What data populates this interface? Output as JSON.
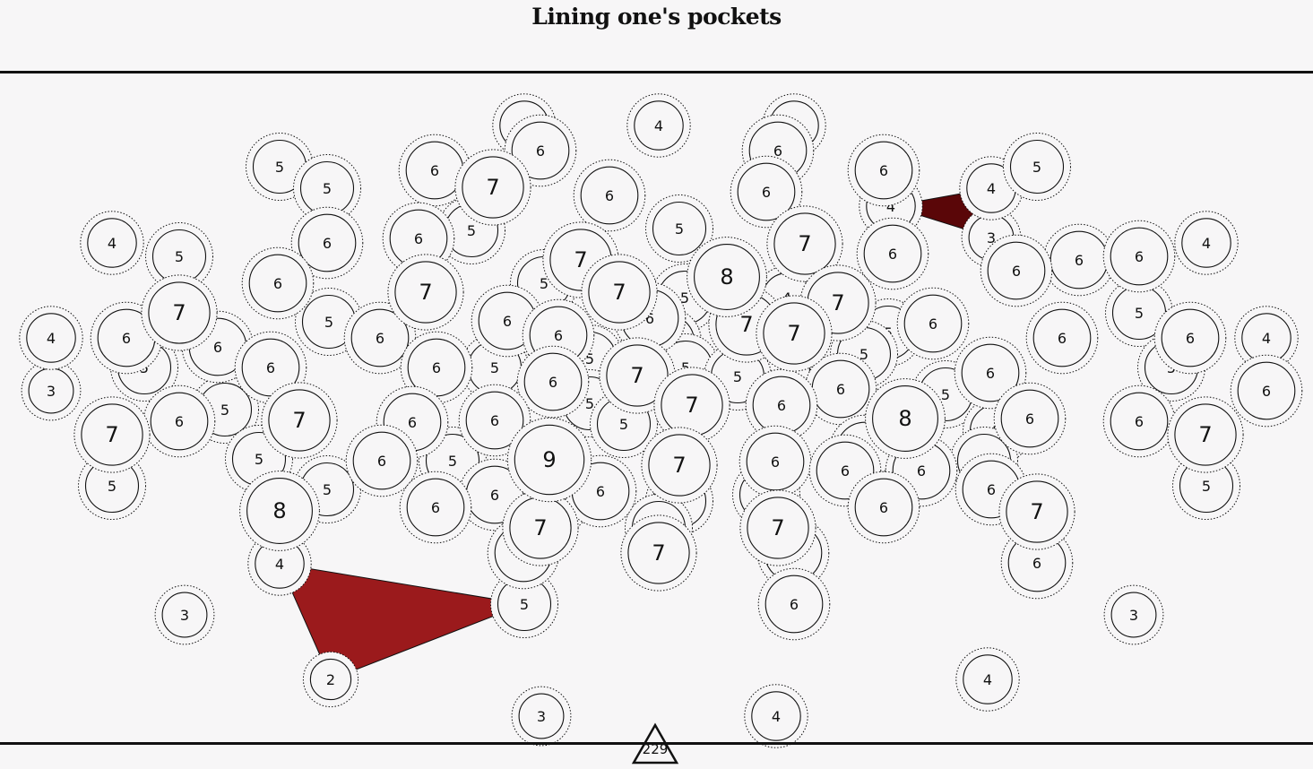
{
  "title": "Lining one's pockets",
  "score": "229",
  "colors": {
    "background": "#f7f6f7",
    "ink": "#111111",
    "circle_fill": "#f7f6f7",
    "pocket_dark": "#5a0608",
    "pocket_red": "#9b1a1c"
  },
  "nodes": [
    {
      "id": 1,
      "value": 4
    },
    {
      "id": 2,
      "value": 4
    },
    {
      "id": 3,
      "value": 4
    },
    {
      "id": 4,
      "value": 6
    },
    {
      "id": 5,
      "value": 6
    },
    {
      "id": 6,
      "value": 5
    },
    {
      "id": 7,
      "value": 5
    },
    {
      "id": 8,
      "value": 6
    },
    {
      "id": 9,
      "value": 7
    },
    {
      "id": 10,
      "value": 6
    },
    {
      "id": 11,
      "value": 6
    },
    {
      "id": 12,
      "value": 6
    },
    {
      "id": 13,
      "value": 4
    },
    {
      "id": 14,
      "value": 5
    },
    {
      "id": 15,
      "value": 4
    },
    {
      "id": 16,
      "value": 5
    },
    {
      "id": 17,
      "value": 4
    },
    {
      "id": 18,
      "value": 5
    },
    {
      "id": 19,
      "value": 6
    },
    {
      "id": 20,
      "value": 6
    },
    {
      "id": 21,
      "value": 5
    },
    {
      "id": 22,
      "value": 7
    },
    {
      "id": 23,
      "value": 3
    },
    {
      "id": 24,
      "value": 6
    },
    {
      "id": 25,
      "value": 6
    },
    {
      "id": 26,
      "value": 6
    },
    {
      "id": 27,
      "value": 4
    },
    {
      "id": 28,
      "value": 6
    },
    {
      "id": 29,
      "value": 7
    },
    {
      "id": 30,
      "value": 7
    },
    {
      "id": 31,
      "value": 5
    },
    {
      "id": 32,
      "value": 8
    },
    {
      "id": 33,
      "value": 7
    },
    {
      "id": 34,
      "value": 5
    },
    {
      "id": 35,
      "value": 4
    },
    {
      "id": 36,
      "value": 7
    },
    {
      "id": 37,
      "value": 7
    },
    {
      "id": 38,
      "value": 6
    },
    {
      "id": 39,
      "value": 5
    },
    {
      "id": 40,
      "value": 6
    },
    {
      "id": 41,
      "value": 6
    },
    {
      "id": 42,
      "value": 6
    },
    {
      "id": 43,
      "value": 5
    },
    {
      "id": 44,
      "value": 5
    },
    {
      "id": 45,
      "value": 6
    },
    {
      "id": 46,
      "value": 4
    },
    {
      "id": 47,
      "value": 5
    },
    {
      "id": 48,
      "value": 6
    },
    {
      "id": 49,
      "value": 7
    },
    {
      "id": 50,
      "value": 6
    },
    {
      "id": 51,
      "value": 6
    },
    {
      "id": 52,
      "value": 5
    },
    {
      "id": 53,
      "value": 6
    },
    {
      "id": 54,
      "value": 6
    },
    {
      "id": 55,
      "value": 7
    },
    {
      "id": 56,
      "value": 6
    },
    {
      "id": 57,
      "value": 5
    },
    {
      "id": 58,
      "value": 5
    },
    {
      "id": 59,
      "value": 5
    },
    {
      "id": 60,
      "value": 6
    },
    {
      "id": 61,
      "value": 5
    },
    {
      "id": 62,
      "value": 7
    },
    {
      "id": 63,
      "value": 5
    },
    {
      "id": 64,
      "value": 5
    },
    {
      "id": 65,
      "value": 6
    },
    {
      "id": 66,
      "value": 5
    },
    {
      "id": 67,
      "value": 6
    },
    {
      "id": 68,
      "value": 6
    },
    {
      "id": 69,
      "value": 4
    },
    {
      "id": 70,
      "value": 3
    },
    {
      "id": 71,
      "value": 7
    },
    {
      "id": 72,
      "value": 6
    },
    {
      "id": 73,
      "value": 6
    },
    {
      "id": 74,
      "value": 6
    },
    {
      "id": 75,
      "value": 5
    },
    {
      "id": 76,
      "value": 7
    },
    {
      "id": 77,
      "value": 5
    },
    {
      "id": 78,
      "value": 6
    },
    {
      "id": 79,
      "value": 5
    },
    {
      "id": 80,
      "value": 7
    },
    {
      "id": 81,
      "value": 6
    },
    {
      "id": 82,
      "value": 6
    },
    {
      "id": 83,
      "value": 5
    },
    {
      "id": 84,
      "value": 8
    },
    {
      "id": 85,
      "value": 6
    },
    {
      "id": 86,
      "value": 9
    },
    {
      "id": 87,
      "value": 5
    },
    {
      "id": 88,
      "value": 6
    },
    {
      "id": 89,
      "value": 7
    },
    {
      "id": 90,
      "value": 6
    },
    {
      "id": 91,
      "value": 5
    },
    {
      "id": 92,
      "value": 8
    },
    {
      "id": 93,
      "value": 6
    },
    {
      "id": 94,
      "value": 6
    },
    {
      "id": 95,
      "value": 6
    },
    {
      "id": 96,
      "value": 5
    },
    {
      "id": 97,
      "value": 6
    },
    {
      "id": 98,
      "value": 6
    },
    {
      "id": 99,
      "value": 5
    },
    {
      "id": 100,
      "value": 6
    },
    {
      "id": 101,
      "value": 5
    },
    {
      "id": 102,
      "value": 5
    },
    {
      "id": 103,
      "value": 6
    },
    {
      "id": 104,
      "value": 6
    },
    {
      "id": 105,
      "value": 4
    },
    {
      "id": 106,
      "value": 5
    },
    {
      "id": 107,
      "value": 7
    },
    {
      "id": 108,
      "value": 5
    },
    {
      "id": 109,
      "value": 6
    },
    {
      "id": 110,
      "value": 6
    },
    {
      "id": 111,
      "value": 7
    },
    {
      "id": 112,
      "value": 7
    },
    {
      "id": 113,
      "value": 7
    },
    {
      "id": 114,
      "value": 6
    },
    {
      "id": 115,
      "value": 7
    },
    {
      "id": 116,
      "value": 6
    },
    {
      "id": 117,
      "value": 6
    },
    {
      "id": 118,
      "value": 4
    },
    {
      "id": 119,
      "value": 5
    },
    {
      "id": 120,
      "value": 5
    },
    {
      "id": 121,
      "value": 6
    },
    {
      "id": 122,
      "value": 3
    },
    {
      "id": 123,
      "value": 5
    },
    {
      "id": 124,
      "value": 6
    },
    {
      "id": 125,
      "value": 3
    },
    {
      "id": 126,
      "value": 7
    },
    {
      "id": 127,
      "value": 3
    },
    {
      "id": 128,
      "value": 2
    },
    {
      "id": 129,
      "value": 4
    },
    {
      "id": 130,
      "value": 3
    },
    {
      "id": 131,
      "value": 4
    },
    {
      "id": 132,
      "value": 6
    },
    {
      "id": 133,
      "value": 4
    },
    {
      "id": 134,
      "value": 5
    },
    {
      "id": 135,
      "value": 4
    },
    {
      "id": 136,
      "value": 4
    },
    {
      "id": 137,
      "value": 3
    },
    {
      "id": 138,
      "value": 6
    }
  ],
  "pockets": [
    {
      "id": "dark",
      "color": "#5a0608",
      "nodes": [
        136,
        134,
        137
      ]
    },
    {
      "id": "red",
      "color": "#9b1a1c",
      "nodes": [
        131,
        39,
        128
      ]
    }
  ]
}
